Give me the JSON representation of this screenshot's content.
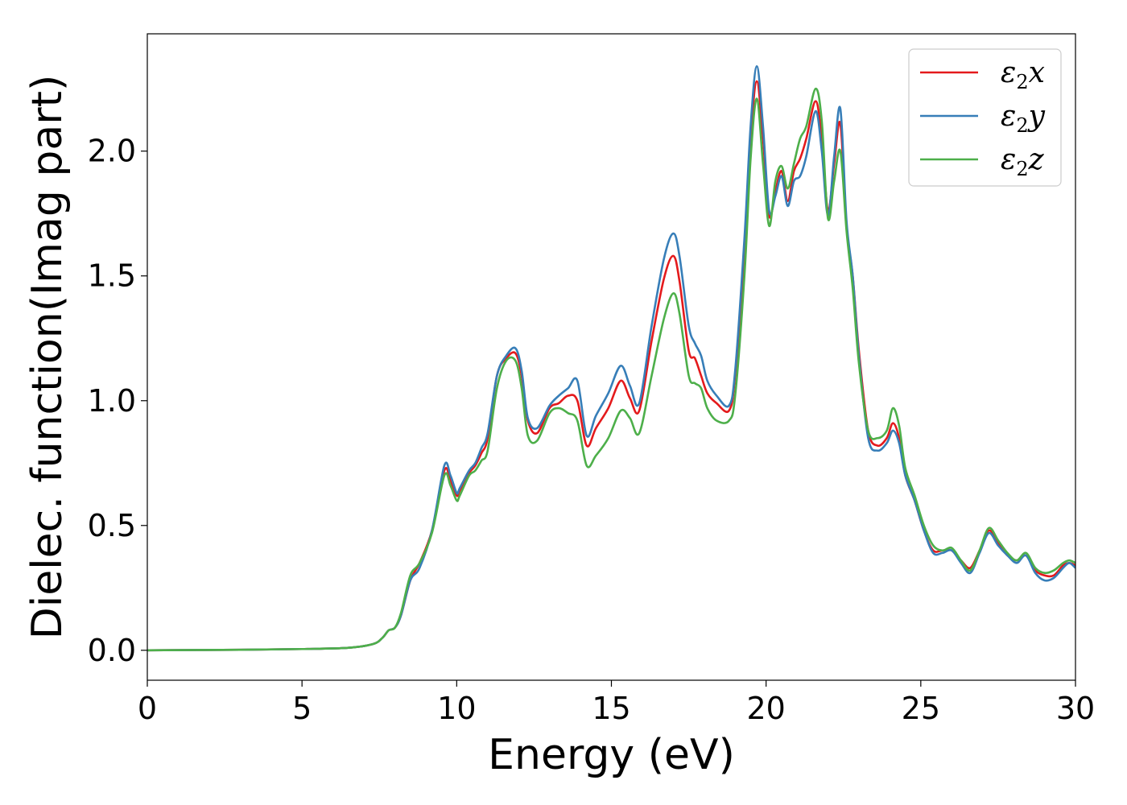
{
  "chart_data": {
    "type": "line",
    "title": "",
    "xlabel": "Energy (eV)",
    "ylabel": "Dielec. function(Imag part)",
    "xlim": [
      0,
      30
    ],
    "ylim": [
      -0.12,
      2.47
    ],
    "xticks": [
      "0",
      "5",
      "10",
      "15",
      "20",
      "25",
      "30"
    ],
    "yticks": [
      "0.0",
      "0.5",
      "1.0",
      "1.5",
      "2.0"
    ],
    "xtick_values": [
      0,
      5,
      10,
      15,
      20,
      25,
      30
    ],
    "ytick_values": [
      0.0,
      0.5,
      1.0,
      1.5,
      2.0
    ],
    "grid": false,
    "legend": {
      "position": "top-right"
    },
    "series": [
      {
        "name": "ε2x",
        "name_base": "ε",
        "name_sub": "2",
        "name_var": "x",
        "color": "#e41a1c",
        "x": [
          0,
          3,
          5,
          6.5,
          7.3,
          7.6,
          7.8,
          8.0,
          8.2,
          8.5,
          8.8,
          9.2,
          9.6,
          9.8,
          10.0,
          10.1,
          10.4,
          10.6,
          10.8,
          11.0,
          11.3,
          11.6,
          11.9,
          12.1,
          12.3,
          12.6,
          13.0,
          13.3,
          13.6,
          13.9,
          14.2,
          14.5,
          14.9,
          15.3,
          15.6,
          15.9,
          16.3,
          16.7,
          17.0,
          17.2,
          17.5,
          17.7,
          17.9,
          18.1,
          18.4,
          18.8,
          19.0,
          19.3,
          19.5,
          19.7,
          19.9,
          20.1,
          20.3,
          20.5,
          20.7,
          20.9,
          21.1,
          21.3,
          21.6,
          21.8,
          22.0,
          22.2,
          22.4,
          22.6,
          22.8,
          23.0,
          23.3,
          23.6,
          23.9,
          24.1,
          24.3,
          24.5,
          24.8,
          25.1,
          25.4,
          25.7,
          26.0,
          26.3,
          26.6,
          26.9,
          27.2,
          27.5,
          27.8,
          28.1,
          28.4,
          28.7,
          29.0,
          29.3,
          29.6,
          29.8,
          30
        ],
        "y": [
          0,
          0.002,
          0.005,
          0.01,
          0.025,
          0.05,
          0.08,
          0.09,
          0.14,
          0.28,
          0.35,
          0.48,
          0.72,
          0.68,
          0.62,
          0.64,
          0.71,
          0.74,
          0.79,
          0.85,
          1.1,
          1.17,
          1.19,
          1.1,
          0.92,
          0.87,
          0.97,
          0.99,
          1.02,
          1.0,
          0.82,
          0.89,
          0.97,
          1.08,
          1.01,
          0.96,
          1.24,
          1.49,
          1.58,
          1.48,
          1.2,
          1.17,
          1.1,
          1.03,
          0.99,
          0.96,
          1.1,
          1.6,
          2.05,
          2.28,
          2.05,
          1.74,
          1.84,
          1.92,
          1.8,
          1.92,
          1.97,
          2.05,
          2.2,
          2.05,
          1.76,
          1.95,
          2.11,
          1.7,
          1.5,
          1.2,
          0.88,
          0.82,
          0.85,
          0.91,
          0.85,
          0.7,
          0.6,
          0.48,
          0.4,
          0.4,
          0.4,
          0.36,
          0.33,
          0.4,
          0.48,
          0.43,
          0.38,
          0.36,
          0.38,
          0.32,
          0.3,
          0.3,
          0.34,
          0.35,
          0.34
        ]
      },
      {
        "name": "ε2y",
        "name_base": "ε",
        "name_sub": "2",
        "name_var": "y",
        "color": "#377eb8",
        "x": [
          0,
          3,
          5,
          6.5,
          7.3,
          7.6,
          7.8,
          8.0,
          8.2,
          8.5,
          8.8,
          9.2,
          9.6,
          9.8,
          10.0,
          10.1,
          10.4,
          10.6,
          10.8,
          11.0,
          11.3,
          11.6,
          11.9,
          12.1,
          12.3,
          12.6,
          13.0,
          13.3,
          13.6,
          13.9,
          14.2,
          14.5,
          14.9,
          15.3,
          15.6,
          15.9,
          16.3,
          16.7,
          17.0,
          17.2,
          17.5,
          17.7,
          17.9,
          18.1,
          18.4,
          18.8,
          19.0,
          19.3,
          19.5,
          19.7,
          19.9,
          20.1,
          20.3,
          20.5,
          20.7,
          20.9,
          21.1,
          21.3,
          21.6,
          21.8,
          22.0,
          22.2,
          22.4,
          22.6,
          22.8,
          23.0,
          23.3,
          23.6,
          23.9,
          24.1,
          24.3,
          24.5,
          24.8,
          25.1,
          25.4,
          25.7,
          26.0,
          26.3,
          26.6,
          26.9,
          27.2,
          27.5,
          27.8,
          28.1,
          28.4,
          28.7,
          29.0,
          29.3,
          29.6,
          29.8,
          30
        ],
        "y": [
          0,
          0.002,
          0.005,
          0.01,
          0.025,
          0.05,
          0.08,
          0.09,
          0.14,
          0.28,
          0.33,
          0.48,
          0.74,
          0.7,
          0.63,
          0.65,
          0.72,
          0.75,
          0.81,
          0.87,
          1.1,
          1.18,
          1.21,
          1.12,
          0.93,
          0.89,
          0.98,
          1.02,
          1.05,
          1.08,
          0.86,
          0.94,
          1.03,
          1.14,
          1.06,
          0.99,
          1.3,
          1.57,
          1.67,
          1.58,
          1.3,
          1.23,
          1.18,
          1.08,
          1.02,
          0.98,
          1.12,
          1.65,
          2.1,
          2.34,
          2.1,
          1.76,
          1.82,
          1.9,
          1.78,
          1.88,
          1.9,
          1.98,
          2.16,
          2.0,
          1.74,
          1.98,
          2.17,
          1.72,
          1.5,
          1.18,
          0.85,
          0.8,
          0.83,
          0.88,
          0.83,
          0.7,
          0.6,
          0.48,
          0.39,
          0.39,
          0.4,
          0.35,
          0.31,
          0.39,
          0.47,
          0.42,
          0.38,
          0.35,
          0.38,
          0.31,
          0.28,
          0.29,
          0.33,
          0.35,
          0.33
        ]
      },
      {
        "name": "ε2z",
        "name_base": "ε",
        "name_sub": "2",
        "name_var": "z",
        "color": "#4daf4a",
        "x": [
          0,
          3,
          5,
          6.5,
          7.3,
          7.6,
          7.8,
          8.0,
          8.2,
          8.5,
          8.8,
          9.2,
          9.6,
          9.8,
          10.0,
          10.1,
          10.4,
          10.6,
          10.8,
          11.0,
          11.3,
          11.6,
          11.9,
          12.1,
          12.3,
          12.6,
          13.0,
          13.3,
          13.6,
          13.9,
          14.2,
          14.5,
          14.9,
          15.3,
          15.6,
          15.9,
          16.3,
          16.7,
          17.0,
          17.2,
          17.5,
          17.7,
          17.9,
          18.1,
          18.4,
          18.8,
          19.0,
          19.3,
          19.5,
          19.7,
          19.9,
          20.1,
          20.3,
          20.5,
          20.7,
          20.9,
          21.1,
          21.3,
          21.6,
          21.8,
          22.0,
          22.2,
          22.4,
          22.6,
          22.8,
          23.0,
          23.3,
          23.6,
          23.9,
          24.1,
          24.3,
          24.5,
          24.8,
          25.1,
          25.4,
          25.7,
          26.0,
          26.3,
          26.6,
          26.9,
          27.2,
          27.5,
          27.8,
          28.1,
          28.4,
          28.7,
          29.0,
          29.3,
          29.6,
          29.8,
          30
        ],
        "y": [
          0,
          0.002,
          0.005,
          0.01,
          0.025,
          0.05,
          0.08,
          0.09,
          0.15,
          0.3,
          0.35,
          0.47,
          0.7,
          0.66,
          0.6,
          0.62,
          0.7,
          0.72,
          0.76,
          0.8,
          1.05,
          1.16,
          1.16,
          1.05,
          0.86,
          0.84,
          0.95,
          0.97,
          0.95,
          0.92,
          0.74,
          0.78,
          0.85,
          0.96,
          0.93,
          0.87,
          1.1,
          1.33,
          1.43,
          1.35,
          1.1,
          1.07,
          1.05,
          0.97,
          0.92,
          0.92,
          1.02,
          1.5,
          1.97,
          2.21,
          1.95,
          1.7,
          1.88,
          1.94,
          1.85,
          1.95,
          2.05,
          2.1,
          2.25,
          2.12,
          1.73,
          1.88,
          2.0,
          1.68,
          1.45,
          1.15,
          0.88,
          0.85,
          0.88,
          0.97,
          0.9,
          0.73,
          0.62,
          0.5,
          0.42,
          0.4,
          0.41,
          0.36,
          0.32,
          0.4,
          0.49,
          0.44,
          0.39,
          0.36,
          0.39,
          0.33,
          0.31,
          0.32,
          0.35,
          0.36,
          0.35
        ]
      }
    ]
  }
}
